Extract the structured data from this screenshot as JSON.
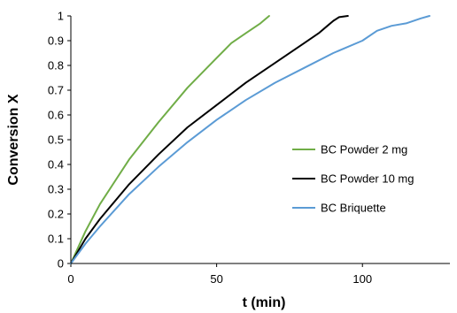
{
  "chart_data": {
    "type": "line",
    "title": "",
    "xlabel": "t (min)",
    "ylabel": "Conversion X",
    "xlim": [
      0,
      130
    ],
    "ylim": [
      0,
      1
    ],
    "x_ticks": [
      "0",
      "50",
      "100"
    ],
    "y_ticks": [
      "0",
      "0.1",
      "0.2",
      "0.3",
      "0.4",
      "0.5",
      "0.6",
      "0.7",
      "0.8",
      "0.9",
      "1"
    ],
    "grid": false,
    "legend_position": "right",
    "series": [
      {
        "name": "BC Powder 2 mg",
        "color": "#70ad47",
        "x": [
          0,
          5,
          10,
          20,
          30,
          40,
          50,
          55,
          60,
          65,
          68
        ],
        "y": [
          0,
          0.13,
          0.24,
          0.42,
          0.57,
          0.71,
          0.83,
          0.89,
          0.93,
          0.97,
          1.0
        ]
      },
      {
        "name": "BC Powder 10 mg",
        "color": "#000000",
        "x": [
          0,
          5,
          10,
          20,
          30,
          40,
          50,
          60,
          70,
          80,
          85,
          88,
          90,
          92,
          95
        ],
        "y": [
          0,
          0.1,
          0.18,
          0.32,
          0.44,
          0.55,
          0.64,
          0.73,
          0.81,
          0.89,
          0.93,
          0.96,
          0.98,
          0.995,
          1.0
        ]
      },
      {
        "name": "BC Briquette",
        "color": "#5b9bd5",
        "x": [
          0,
          5,
          10,
          20,
          30,
          40,
          50,
          60,
          70,
          80,
          90,
          100,
          105,
          110,
          115,
          120,
          123
        ],
        "y": [
          0,
          0.08,
          0.15,
          0.28,
          0.39,
          0.49,
          0.58,
          0.66,
          0.73,
          0.79,
          0.85,
          0.9,
          0.94,
          0.96,
          0.97,
          0.99,
          1.0
        ]
      }
    ]
  }
}
